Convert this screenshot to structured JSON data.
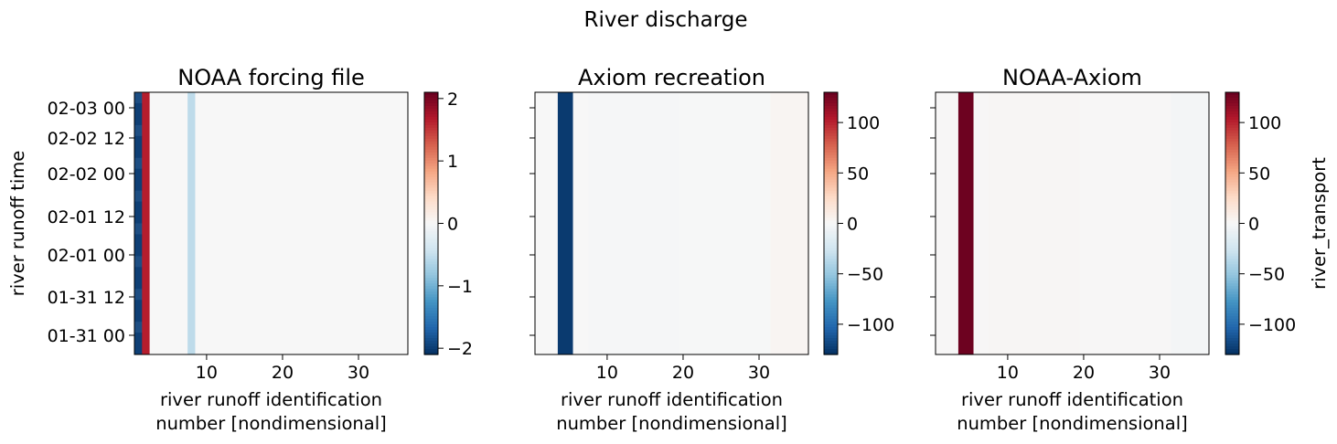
{
  "figure": {
    "title": "River discharge"
  },
  "chart_data": [
    {
      "type": "heatmap",
      "title": "NOAA forcing file",
      "xlabel_line1": "river runoff identification",
      "xlabel_line2": "number [nondimensional]",
      "ylabel": "river runoff time",
      "xlim": [
        0.5,
        36.5
      ],
      "xticks": [
        10,
        20,
        30
      ],
      "ytick_labels": [
        "02-03 00",
        "02-02 12",
        "02-02 00",
        "02-01 12",
        "02-01 00",
        "01-31 12",
        "01-31 00"
      ],
      "show_ytick_labels": true,
      "colorbar": {
        "vmin": -2.1,
        "vmax": 2.1,
        "ticks": [
          2,
          1,
          0,
          -1,
          -2
        ],
        "tick_labels": [
          "2",
          "1",
          "0",
          "−1",
          "−2"
        ],
        "label": ""
      },
      "columns": [
        {
          "x_from": 0.5,
          "x_to": 1.5,
          "value": -1.95
        },
        {
          "x_from": 1.5,
          "x_to": 2.5,
          "value": 1.65
        },
        {
          "x_from": 2.5,
          "x_to": 7.5,
          "value": 0.0
        },
        {
          "x_from": 7.5,
          "x_to": 8.5,
          "value": -0.55
        },
        {
          "x_from": 8.5,
          "x_to": 36.5,
          "value": 0.0
        }
      ]
    },
    {
      "type": "heatmap",
      "title": "Axiom recreation",
      "xlabel_line1": "river runoff identification",
      "xlabel_line2": "number [nondimensional]",
      "ylabel": "",
      "xlim": [
        0.5,
        36.5
      ],
      "xticks": [
        10,
        20,
        30
      ],
      "ytick_labels": [
        "02-03 00",
        "02-02 12",
        "02-02 00",
        "02-01 12",
        "02-01 00",
        "01-31 12",
        "01-31 00"
      ],
      "show_ytick_labels": false,
      "colorbar": {
        "vmin": -130,
        "vmax": 130,
        "ticks": [
          100,
          50,
          0,
          -50,
          -100
        ],
        "tick_labels": [
          "100",
          "50",
          "0",
          "−50",
          "−100"
        ],
        "label": ""
      },
      "columns": [
        {
          "x_from": 0.5,
          "x_to": 3.5,
          "value": 0.0
        },
        {
          "x_from": 3.5,
          "x_to": 5.5,
          "value": -125
        },
        {
          "x_from": 5.5,
          "x_to": 7.5,
          "value": 0.0
        },
        {
          "x_from": 7.5,
          "x_to": 19.5,
          "value": -1.5
        },
        {
          "x_from": 19.5,
          "x_to": 31.5,
          "value": -0.5
        },
        {
          "x_from": 31.5,
          "x_to": 36.5,
          "value": 2.5
        }
      ]
    },
    {
      "type": "heatmap",
      "title": "NOAA-Axiom",
      "xlabel_line1": "river runoff identification",
      "xlabel_line2": "number [nondimensional]",
      "ylabel": "",
      "xlim": [
        0.5,
        36.5
      ],
      "xticks": [
        10,
        20,
        30
      ],
      "ytick_labels": [
        "02-03 00",
        "02-02 12",
        "02-02 00",
        "02-01 12",
        "02-01 00",
        "01-31 12",
        "01-31 00"
      ],
      "show_ytick_labels": false,
      "colorbar": {
        "vmin": -130,
        "vmax": 130,
        "ticks": [
          100,
          50,
          0,
          -50,
          -100
        ],
        "tick_labels": [
          "100",
          "50",
          "0",
          "−50",
          "−100"
        ],
        "label": "river_transport"
      },
      "columns": [
        {
          "x_from": 0.5,
          "x_to": 3.5,
          "value": 0.5
        },
        {
          "x_from": 3.5,
          "x_to": 5.5,
          "value": 128
        },
        {
          "x_from": 5.5,
          "x_to": 7.5,
          "value": 0.5
        },
        {
          "x_from": 7.5,
          "x_to": 19.5,
          "value": 1.8
        },
        {
          "x_from": 19.5,
          "x_to": 31.5,
          "value": 0.8
        },
        {
          "x_from": 31.5,
          "x_to": 36.5,
          "value": -2.5
        }
      ]
    }
  ]
}
